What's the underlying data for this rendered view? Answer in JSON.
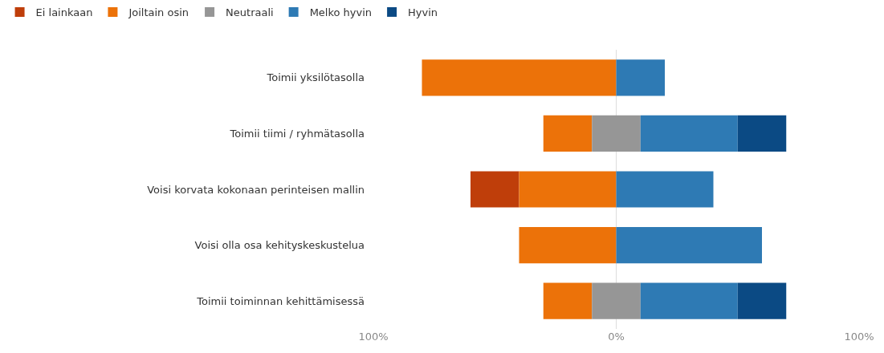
{
  "chart_data": {
    "type": "bar",
    "orientation": "horizontal",
    "categories": [
      "Toimii yksilötasolla",
      "Toimii tiimi / ryhmätasolla",
      "Voisi korvata kokonaan perinteisen mallin",
      "Voisi olla osa kehityskeskustelua",
      "Toimii toiminnan kehittämisessä"
    ],
    "series": [
      {
        "name": "Ei lainkaan",
        "color": "#bf3e0a",
        "base": [
          null,
          null,
          -60,
          null,
          null
        ],
        "values": [
          null,
          null,
          20,
          null,
          null
        ]
      },
      {
        "name": "Joiltain osin",
        "color": "#ec7209",
        "base": [
          -80,
          -30,
          -40,
          -40,
          -30
        ],
        "values": [
          80,
          20,
          40,
          40,
          20
        ]
      },
      {
        "name": "Neutraali",
        "color": "#969696",
        "base": [
          null,
          -10,
          null,
          null,
          -10
        ],
        "values": [
          null,
          20,
          null,
          null,
          20
        ]
      },
      {
        "name": "Melko hyvin",
        "color": "#2e7ab4",
        "base": [
          0,
          10,
          0,
          0,
          10
        ],
        "values": [
          20,
          40,
          40,
          60,
          40
        ]
      },
      {
        "name": "Hyvin",
        "color": "#0b4a84",
        "base": [
          null,
          50,
          null,
          null,
          50
        ],
        "values": [
          null,
          20,
          null,
          null,
          20
        ]
      }
    ],
    "xlim": [
      -100,
      100
    ],
    "xticks": [
      {
        "value": -100,
        "label": "100%"
      },
      {
        "value": 0,
        "label": "0%"
      },
      {
        "value": 100,
        "label": "100%"
      }
    ],
    "grid": "x",
    "legend": "top left"
  }
}
